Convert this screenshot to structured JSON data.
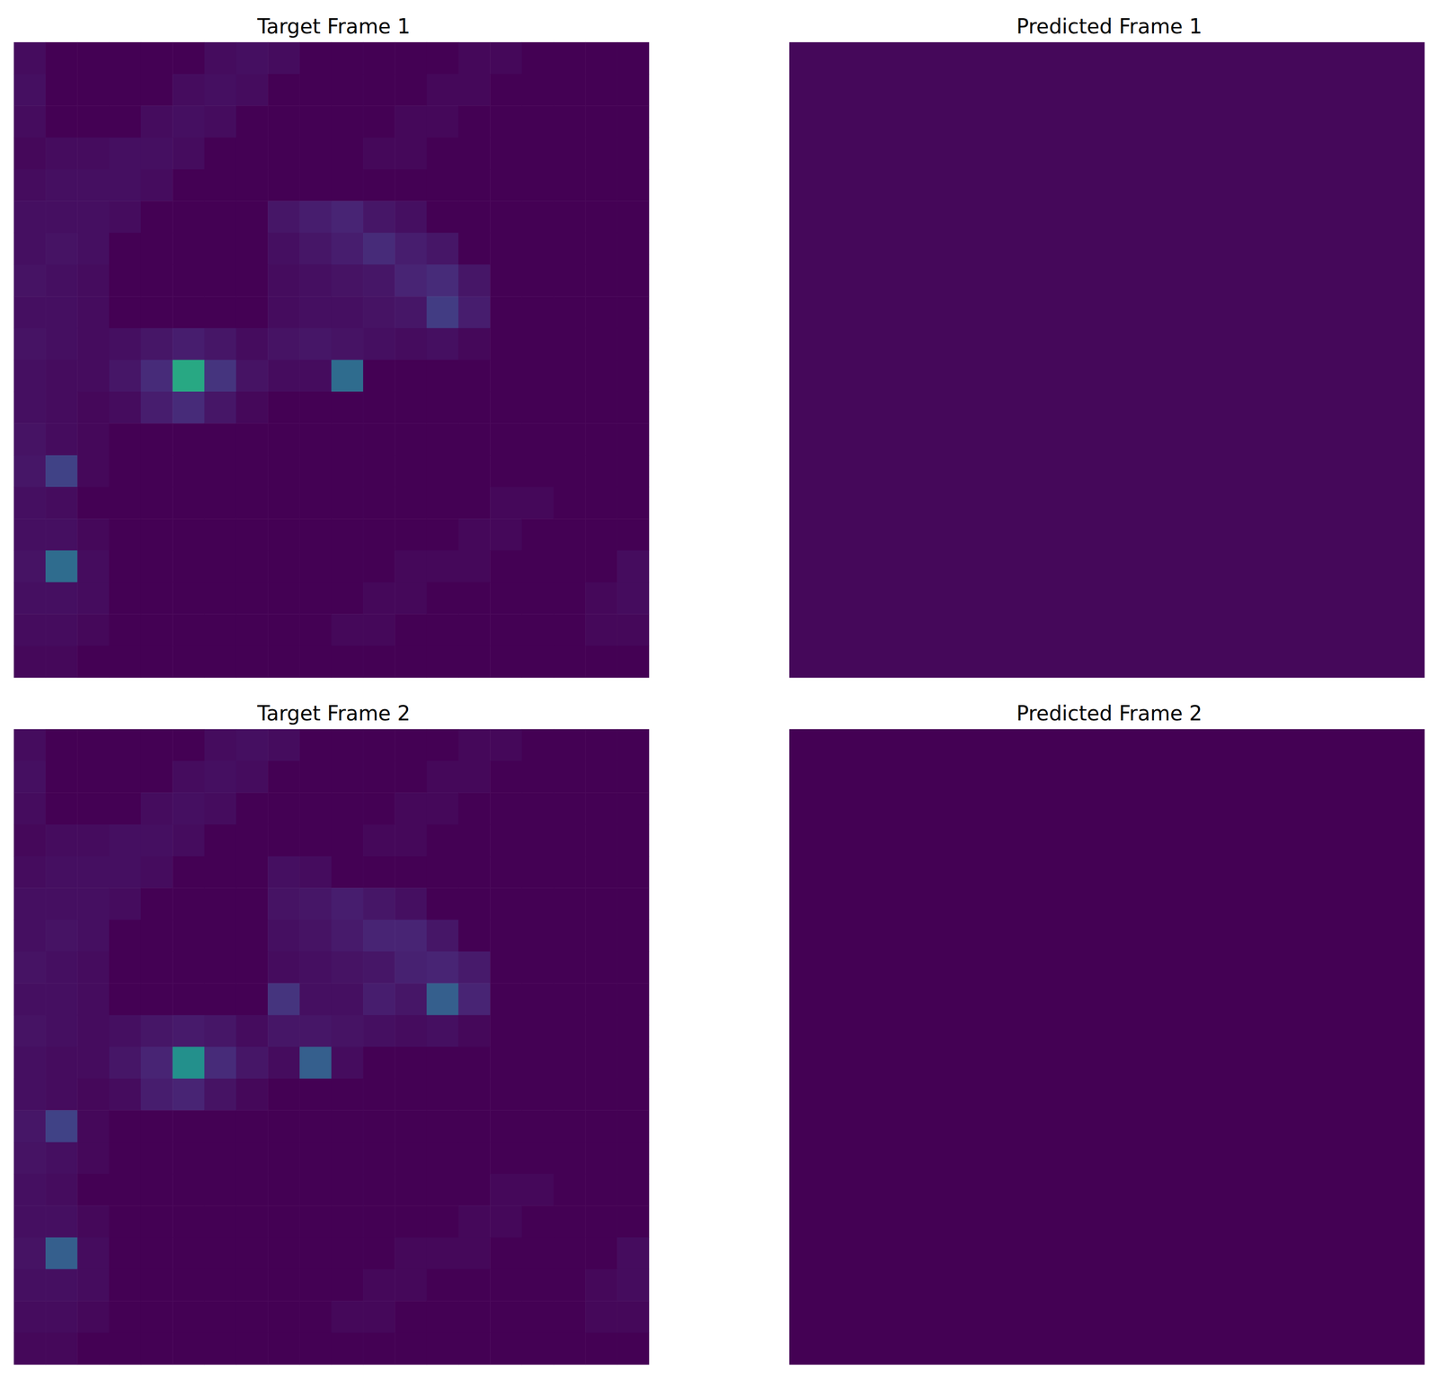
{
  "chart_data": [
    {
      "type": "heatmap",
      "title": "Target Frame 1",
      "color_range": [
        0,
        1
      ],
      "tick_labels": false,
      "cells": [
        [
          0.03,
          0,
          0,
          0,
          0,
          0,
          0.03,
          0.04,
          0.03,
          0,
          0,
          0,
          0,
          0,
          0.02,
          0.02,
          0,
          0,
          0,
          0
        ],
        [
          0.04,
          0,
          0,
          0,
          0,
          0.03,
          0.04,
          0.03,
          0,
          0,
          0,
          0,
          0,
          0.02,
          0.02,
          0,
          0,
          0,
          0,
          0
        ],
        [
          0.03,
          0,
          0,
          0,
          0.03,
          0.04,
          0.03,
          0,
          0,
          0,
          0,
          0,
          0.02,
          0.02,
          0,
          0,
          0,
          0,
          0,
          0
        ],
        [
          0.02,
          0.03,
          0.03,
          0.04,
          0.04,
          0.03,
          0,
          0,
          0,
          0,
          0,
          0.02,
          0.02,
          0,
          0,
          0,
          0,
          0,
          0,
          0
        ],
        [
          0.03,
          0.04,
          0.04,
          0.04,
          0.03,
          0,
          0,
          0,
          0,
          0,
          0,
          0,
          0,
          0,
          0,
          0,
          0,
          0,
          0,
          0
        ],
        [
          0.04,
          0.04,
          0.04,
          0.03,
          0,
          0,
          0,
          0,
          0.06,
          0.08,
          0.1,
          0.06,
          0.04,
          0,
          0,
          0,
          0,
          0,
          0,
          0
        ],
        [
          0.04,
          0.05,
          0.04,
          0,
          0,
          0,
          0,
          0,
          0.04,
          0.06,
          0.08,
          0.12,
          0.08,
          0.06,
          0,
          0,
          0,
          0,
          0,
          0
        ],
        [
          0.05,
          0.04,
          0.03,
          0,
          0,
          0,
          0,
          0,
          0.03,
          0.04,
          0.05,
          0.06,
          0.1,
          0.12,
          0.06,
          0,
          0,
          0,
          0,
          0
        ],
        [
          0.04,
          0.04,
          0.03,
          0,
          0,
          0,
          0,
          0,
          0.03,
          0.04,
          0.04,
          0.05,
          0.06,
          0.18,
          0.08,
          0,
          0,
          0,
          0,
          0
        ],
        [
          0.05,
          0.04,
          0.03,
          0.04,
          0.06,
          0.08,
          0.06,
          0.03,
          0.05,
          0.06,
          0.05,
          0.04,
          0.03,
          0.04,
          0.02,
          0,
          0,
          0,
          0,
          0
        ],
        [
          0.04,
          0.03,
          0.03,
          0.06,
          0.12,
          0.6,
          0.15,
          0.05,
          0.03,
          0.03,
          0.35,
          0,
          0,
          0,
          0,
          0,
          0,
          0,
          0,
          0
        ],
        [
          0.04,
          0.03,
          0.02,
          0.03,
          0.08,
          0.12,
          0.06,
          0.02,
          0,
          0,
          0,
          0,
          0,
          0,
          0,
          0,
          0,
          0,
          0,
          0
        ],
        [
          0.05,
          0.03,
          0.02,
          0,
          0,
          0,
          0,
          0,
          0,
          0,
          0,
          0,
          0,
          0,
          0,
          0,
          0,
          0,
          0,
          0
        ],
        [
          0.06,
          0.2,
          0.02,
          0,
          0,
          0,
          0,
          0,
          0,
          0,
          0,
          0,
          0,
          0,
          0,
          0,
          0,
          0,
          0,
          0
        ],
        [
          0.04,
          0.03,
          0,
          0,
          0,
          0,
          0,
          0,
          0,
          0,
          0,
          0,
          0,
          0,
          0,
          0.02,
          0.02,
          0,
          0,
          0
        ],
        [
          0.04,
          0.04,
          0.02,
          0,
          0,
          0,
          0,
          0,
          0,
          0,
          0,
          0,
          0,
          0,
          0.02,
          0.02,
          0,
          0,
          0,
          0
        ],
        [
          0.05,
          0.35,
          0.03,
          0,
          0,
          0,
          0,
          0,
          0,
          0,
          0,
          0,
          0.02,
          0.02,
          0.02,
          0,
          0,
          0,
          0,
          0.03
        ],
        [
          0.04,
          0.04,
          0.03,
          0,
          0,
          0,
          0,
          0,
          0,
          0,
          0,
          0.02,
          0.02,
          0,
          0,
          0,
          0,
          0,
          0.02,
          0.03
        ],
        [
          0.03,
          0.03,
          0.02,
          0,
          0,
          0,
          0,
          0,
          0,
          0,
          0.02,
          0.02,
          0,
          0,
          0,
          0,
          0,
          0,
          0.02,
          0.02
        ],
        [
          0.02,
          0.02,
          0,
          0,
          0,
          0,
          0,
          0,
          0,
          0,
          0,
          0,
          0,
          0,
          0,
          0,
          0,
          0,
          0,
          0
        ]
      ]
    },
    {
      "type": "heatmap",
      "title": "Predicted Frame 1",
      "color_range": [
        0,
        1
      ],
      "tick_labels": false,
      "cells": [
        [
          0.02
        ]
      ]
    },
    {
      "type": "heatmap",
      "title": "Target Frame 2",
      "color_range": [
        0,
        1
      ],
      "tick_labels": false,
      "cells": [
        [
          0.03,
          0,
          0,
          0,
          0,
          0,
          0.03,
          0.04,
          0.03,
          0,
          0,
          0,
          0,
          0,
          0.02,
          0.02,
          0,
          0,
          0,
          0
        ],
        [
          0.04,
          0,
          0,
          0,
          0,
          0.03,
          0.04,
          0.03,
          0,
          0,
          0,
          0,
          0,
          0.02,
          0.02,
          0,
          0,
          0,
          0,
          0
        ],
        [
          0.03,
          0,
          0,
          0,
          0.03,
          0.04,
          0.03,
          0,
          0,
          0,
          0,
          0,
          0.02,
          0.02,
          0,
          0,
          0,
          0,
          0,
          0
        ],
        [
          0.02,
          0.03,
          0.03,
          0.04,
          0.04,
          0.03,
          0,
          0,
          0,
          0,
          0,
          0.02,
          0.02,
          0,
          0,
          0,
          0,
          0,
          0,
          0
        ],
        [
          0.03,
          0.04,
          0.04,
          0.04,
          0.03,
          0,
          0,
          0,
          0.04,
          0.03,
          0,
          0,
          0,
          0,
          0,
          0,
          0,
          0,
          0,
          0
        ],
        [
          0.04,
          0.04,
          0.04,
          0.03,
          0,
          0,
          0,
          0,
          0.05,
          0.06,
          0.08,
          0.06,
          0.04,
          0,
          0,
          0,
          0,
          0,
          0,
          0
        ],
        [
          0.04,
          0.05,
          0.04,
          0,
          0,
          0,
          0,
          0,
          0.04,
          0.05,
          0.07,
          0.1,
          0.1,
          0.06,
          0,
          0,
          0,
          0,
          0,
          0
        ],
        [
          0.05,
          0.04,
          0.03,
          0,
          0,
          0,
          0,
          0,
          0.03,
          0.04,
          0.05,
          0.06,
          0.09,
          0.1,
          0.07,
          0,
          0,
          0,
          0,
          0
        ],
        [
          0.04,
          0.04,
          0.03,
          0,
          0,
          0,
          0,
          0,
          0.15,
          0.04,
          0.04,
          0.08,
          0.06,
          0.3,
          0.1,
          0,
          0,
          0,
          0,
          0
        ],
        [
          0.05,
          0.04,
          0.03,
          0.04,
          0.06,
          0.07,
          0.06,
          0.03,
          0.06,
          0.06,
          0.05,
          0.04,
          0.03,
          0.04,
          0.02,
          0,
          0,
          0,
          0,
          0
        ],
        [
          0.04,
          0.03,
          0.03,
          0.06,
          0.1,
          0.5,
          0.12,
          0.06,
          0.03,
          0.3,
          0.03,
          0,
          0,
          0,
          0,
          0,
          0,
          0,
          0,
          0
        ],
        [
          0.04,
          0.03,
          0.02,
          0.03,
          0.08,
          0.1,
          0.05,
          0.02,
          0,
          0,
          0,
          0,
          0,
          0,
          0,
          0,
          0,
          0,
          0,
          0
        ],
        [
          0.06,
          0.2,
          0.02,
          0,
          0,
          0,
          0,
          0,
          0,
          0,
          0,
          0,
          0,
          0,
          0,
          0,
          0,
          0,
          0,
          0
        ],
        [
          0.05,
          0.04,
          0.02,
          0,
          0,
          0,
          0,
          0,
          0,
          0,
          0,
          0,
          0,
          0,
          0,
          0,
          0,
          0,
          0,
          0
        ],
        [
          0.04,
          0.03,
          0,
          0,
          0,
          0,
          0,
          0,
          0,
          0,
          0,
          0,
          0,
          0,
          0,
          0.02,
          0.02,
          0,
          0,
          0
        ],
        [
          0.04,
          0.04,
          0.02,
          0,
          0,
          0,
          0,
          0,
          0,
          0,
          0,
          0,
          0,
          0,
          0.02,
          0.02,
          0,
          0,
          0,
          0
        ],
        [
          0.05,
          0.3,
          0.03,
          0,
          0,
          0,
          0,
          0,
          0,
          0,
          0,
          0,
          0.02,
          0.02,
          0.02,
          0,
          0,
          0,
          0,
          0.03
        ],
        [
          0.04,
          0.04,
          0.03,
          0,
          0,
          0,
          0,
          0,
          0,
          0,
          0,
          0.02,
          0.02,
          0,
          0,
          0,
          0,
          0,
          0.02,
          0.03
        ],
        [
          0.03,
          0.03,
          0.02,
          0,
          0,
          0,
          0,
          0,
          0,
          0,
          0.02,
          0.02,
          0,
          0,
          0,
          0,
          0,
          0,
          0.02,
          0.02
        ],
        [
          0.02,
          0.02,
          0,
          0,
          0,
          0,
          0,
          0,
          0,
          0,
          0,
          0,
          0,
          0,
          0,
          0,
          0,
          0,
          0,
          0
        ]
      ]
    },
    {
      "type": "heatmap",
      "title": "Predicted Frame 2",
      "color_range": [
        0,
        1
      ],
      "tick_labels": false,
      "cells": [
        [
          0
        ]
      ]
    }
  ]
}
